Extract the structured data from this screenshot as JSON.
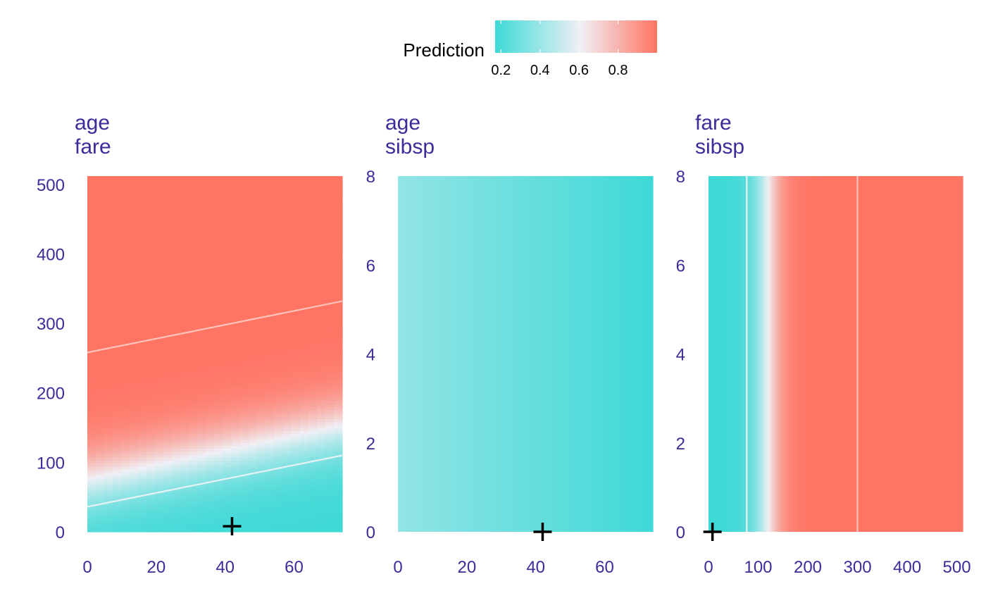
{
  "legend": {
    "title": "Prediction",
    "ticks": [
      "0.2",
      "0.4",
      "0.6",
      "0.8"
    ],
    "tick_values": [
      0.2,
      0.4,
      0.6,
      0.8
    ],
    "range": [
      0.17,
      1.0
    ],
    "colors": {
      "low": "#3dd9d6",
      "mid": "#f0f0f5",
      "high": "#ff7463"
    }
  },
  "chart_data": [
    {
      "type": "heatmap",
      "title_lines": [
        "age",
        "fare"
      ],
      "x_var": "age",
      "y_var": "fare",
      "xlim": [
        0,
        74
      ],
      "ylim": [
        0,
        512
      ],
      "x_ticks": [
        "0",
        "20",
        "40",
        "60"
      ],
      "x_tick_values": [
        0,
        20,
        40,
        60
      ],
      "y_ticks": [
        "0",
        "100",
        "200",
        "300",
        "400",
        "500"
      ],
      "y_tick_values": [
        0,
        100,
        200,
        300,
        400,
        500
      ],
      "prediction_model": {
        "kind": "fare_age",
        "mid_fare_at_age0": 72,
        "mid_fare_slope": 1.05,
        "scale": 110
      },
      "contours": [
        {
          "y_at_xmin": 36,
          "y_at_xmax": 110,
          "color": "#e8f2f4"
        },
        {
          "y_at_xmin": 258,
          "y_at_xmax": 332,
          "color": "#ffc4bc"
        }
      ],
      "observation": {
        "x": 42,
        "y": 8
      }
    },
    {
      "type": "heatmap",
      "title_lines": [
        "age",
        "sibsp"
      ],
      "x_var": "age",
      "y_var": "sibsp",
      "xlim": [
        0,
        74
      ],
      "ylim": [
        0,
        8
      ],
      "x_ticks": [
        "0",
        "20",
        "40",
        "60"
      ],
      "x_tick_values": [
        0,
        20,
        40,
        60
      ],
      "y_ticks": [
        "0",
        "2",
        "4",
        "6",
        "8"
      ],
      "y_tick_values": [
        0,
        2,
        4,
        6,
        8
      ],
      "prediction_model": {
        "kind": "age",
        "value_at_xmin": 0.38,
        "value_at_xmax": 0.17
      },
      "contours": [],
      "observation": {
        "x": 42,
        "y": 0
      }
    },
    {
      "type": "heatmap",
      "title_lines": [
        "fare",
        "sibsp"
      ],
      "x_var": "fare",
      "y_var": "sibsp",
      "xlim": [
        0,
        512
      ],
      "ylim": [
        0,
        8
      ],
      "x_ticks": [
        "0",
        "100",
        "200",
        "300",
        "400",
        "500"
      ],
      "x_tick_values": [
        0,
        100,
        200,
        300,
        400,
        500
      ],
      "y_ticks": [
        "0",
        "2",
        "4",
        "6",
        "8"
      ],
      "y_tick_values": [
        0,
        2,
        4,
        6,
        8
      ],
      "prediction_model": {
        "kind": "fare",
        "mid_fare": 118,
        "scale": 70
      },
      "contours": [
        {
          "x": 77,
          "color": "#e8f2f4"
        },
        {
          "x": 300,
          "color": "#ffc4bc"
        }
      ],
      "observation": {
        "x": 8,
        "y": 0
      }
    }
  ]
}
